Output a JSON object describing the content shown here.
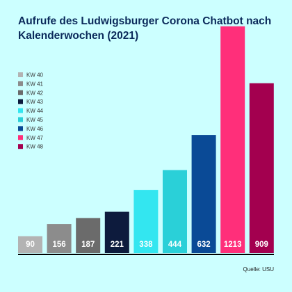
{
  "chart_data": {
    "type": "bar",
    "title": "Aufrufe des Ludwigsburger Corona Chatbot nach Kalenderwochen (2021)",
    "categories": [
      "KW 40",
      "KW 41",
      "KW 42",
      "KW 43",
      "KW 44",
      "KW 45",
      "KW 46",
      "KW 47",
      "KW 48"
    ],
    "values": [
      90,
      156,
      187,
      221,
      338,
      444,
      632,
      1213,
      909
    ],
    "colors": [
      "#b3b3b3",
      "#8c8c8c",
      "#6b6b6b",
      "#0d1b3d",
      "#33e6f0",
      "#2ad0d8",
      "#0a4a96",
      "#ff2f7a",
      "#a3004f"
    ],
    "ylim": [
      0,
      1250
    ],
    "legend_position": "top-left",
    "grid": false,
    "source": "Quelle: USU"
  }
}
